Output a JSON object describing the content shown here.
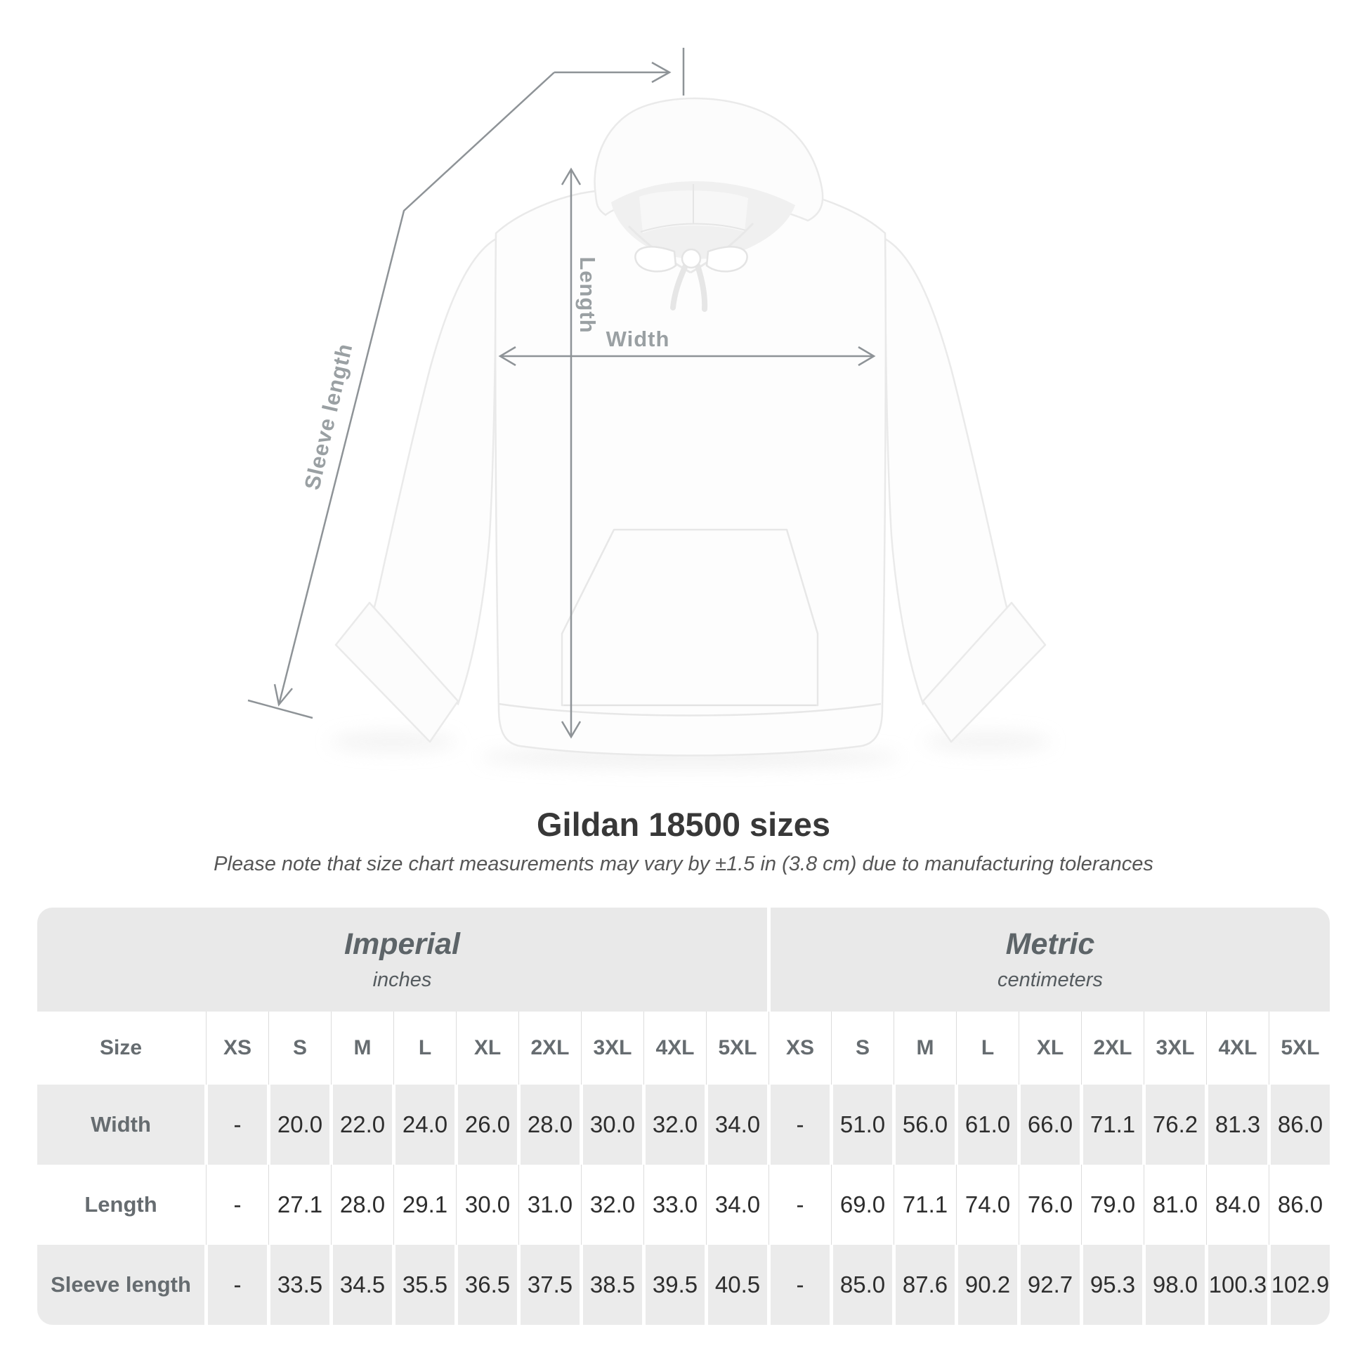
{
  "diagram": {
    "labels": {
      "length": "Length",
      "width": "Width",
      "sleeve": "Sleeve length"
    },
    "line_color": "#8e9397",
    "label_color": "#9aa0a3"
  },
  "title": "Gildan 18500 sizes",
  "subtitle": "Please note that size chart measurements may vary by ±1.5 in (3.8 cm) due to manufacturing tolerances",
  "table": {
    "unit_headers": [
      {
        "name": "Imperial",
        "unit": "inches"
      },
      {
        "name": "Metric",
        "unit": "centimeters"
      }
    ],
    "size_header": {
      "label": "Size",
      "imperial": [
        "XS",
        "S",
        "M",
        "L",
        "XL",
        "2XL",
        "3XL",
        "4XL",
        "5XL"
      ],
      "metric": [
        "XS",
        "S",
        "M",
        "L",
        "XL",
        "2XL",
        "3XL",
        "4XL",
        "5XL"
      ]
    },
    "rows": [
      {
        "label": "Width",
        "values": [
          "-",
          "20.0",
          "22.0",
          "24.0",
          "26.0",
          "28.0",
          "30.0",
          "32.0",
          "34.0",
          "-",
          "51.0",
          "56.0",
          "61.0",
          "66.0",
          "71.1",
          "76.2",
          "81.3",
          "86.0"
        ]
      },
      {
        "label": "Length",
        "values": [
          "-",
          "27.1",
          "28.0",
          "29.1",
          "30.0",
          "31.0",
          "32.0",
          "33.0",
          "34.0",
          "-",
          "69.0",
          "71.1",
          "74.0",
          "76.0",
          "79.0",
          "81.0",
          "84.0",
          "86.0"
        ]
      },
      {
        "label": "Sleeve length",
        "values": [
          "-",
          "33.5",
          "34.5",
          "35.5",
          "36.5",
          "37.5",
          "38.5",
          "39.5",
          "40.5",
          "-",
          "85.0",
          "87.6",
          "90.2",
          "92.7",
          "95.3",
          "98.0",
          "100.3",
          "102.9"
        ]
      }
    ]
  },
  "chart_data": {
    "type": "table",
    "title": "Gildan 18500 sizes",
    "note": "Please note that size chart measurements may vary by ±1.5 in (3.8 cm) due to manufacturing tolerances",
    "columns": [
      "XS",
      "S",
      "M",
      "L",
      "XL",
      "2XL",
      "3XL",
      "4XL",
      "5XL"
    ],
    "units": {
      "imperial": "inches",
      "metric": "centimeters"
    },
    "rows": [
      {
        "measurement": "Width",
        "imperial": [
          null,
          20.0,
          22.0,
          24.0,
          26.0,
          28.0,
          30.0,
          32.0,
          34.0
        ],
        "metric": [
          null,
          51.0,
          56.0,
          61.0,
          66.0,
          71.1,
          76.2,
          81.3,
          86.0
        ]
      },
      {
        "measurement": "Length",
        "imperial": [
          null,
          27.1,
          28.0,
          29.1,
          30.0,
          31.0,
          32.0,
          33.0,
          34.0
        ],
        "metric": [
          null,
          69.0,
          71.1,
          74.0,
          76.0,
          79.0,
          81.0,
          84.0,
          86.0
        ]
      },
      {
        "measurement": "Sleeve length",
        "imperial": [
          null,
          33.5,
          34.5,
          35.5,
          36.5,
          37.5,
          38.5,
          39.5,
          40.5
        ],
        "metric": [
          null,
          85.0,
          87.6,
          90.2,
          92.7,
          95.3,
          98.0,
          100.3,
          102.9
        ]
      }
    ]
  }
}
